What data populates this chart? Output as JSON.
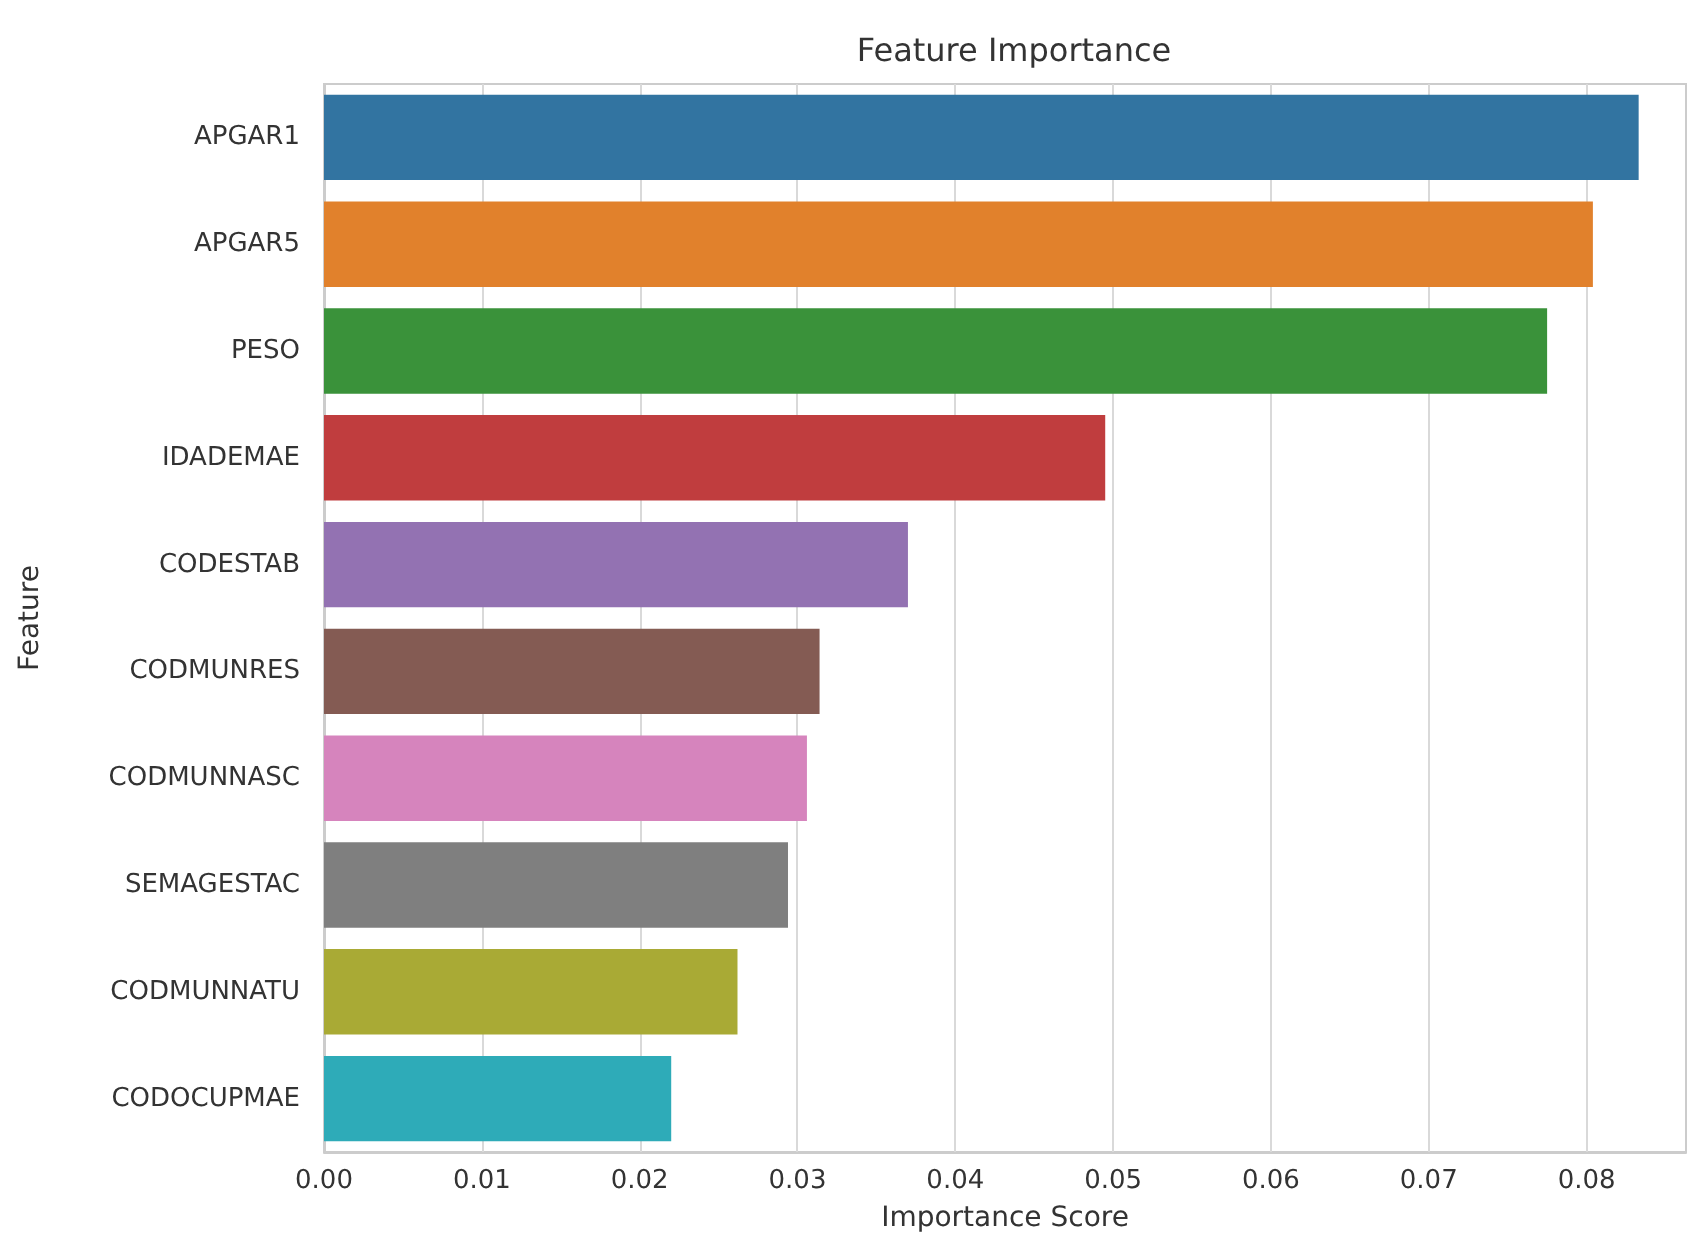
{
  "chart_data": {
    "type": "bar",
    "orientation": "horizontal",
    "title": "Feature Importance",
    "xlabel": "Importance Score",
    "ylabel": "Feature",
    "categories": [
      "APGAR1",
      "APGAR5",
      "PESO",
      "IDADEMAE",
      "CODESTAB",
      "CODMUNRES",
      "CODMUNNASC",
      "SEMAGESTAC",
      "CODMUNNATU",
      "CODOCUPMAE"
    ],
    "values": [
      0.0833,
      0.0804,
      0.0775,
      0.0495,
      0.037,
      0.0314,
      0.0306,
      0.0294,
      0.0262,
      0.022
    ],
    "colors": [
      "#3274a1",
      "#e1812c",
      "#3a923a",
      "#c03d3e",
      "#9372b2",
      "#845b53",
      "#d684bd",
      "#7f7f7f",
      "#a9aa35",
      "#2eabb8"
    ],
    "xlim": [
      0,
      0.0863
    ],
    "xticks": [
      {
        "value": 0,
        "label": "0.00"
      },
      {
        "value": 0.01,
        "label": "0.01"
      },
      {
        "value": 0.02,
        "label": "0.02"
      },
      {
        "value": 0.03,
        "label": "0.03"
      },
      {
        "value": 0.04,
        "label": "0.04"
      },
      {
        "value": 0.05,
        "label": "0.05"
      },
      {
        "value": 0.06,
        "label": "0.06"
      },
      {
        "value": 0.07,
        "label": "0.07"
      },
      {
        "value": 0.08,
        "label": "0.08"
      }
    ],
    "grid": "x"
  }
}
